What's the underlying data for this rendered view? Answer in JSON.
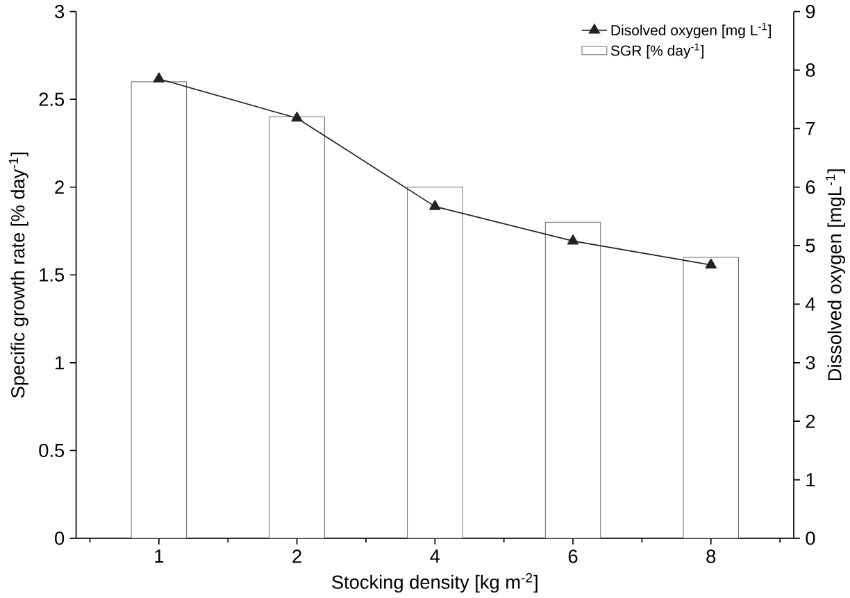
{
  "chart_data": {
    "type": "bar",
    "xlabel": "Stocking density [kg m$^{-2}$]",
    "ylabel": "Specific growth rate [% day$^{-1}$]",
    "y2label": "Dissolved oxygen [mgL$^{-1}$]",
    "categories": [
      "1",
      "2",
      "4",
      "6",
      "8"
    ],
    "series": [
      {
        "name": "SGR [% day$^{-1}$]",
        "color": "#ffffff",
        "values": [
          2.6,
          2.4,
          2.0,
          1.8,
          1.6
        ]
      },
      {
        "name": "Disolved oxygen [mg L$^{-1}$]",
        "type": "line",
        "axis": "y2",
        "color": "#222222",
        "marker": "triangle",
        "line_style": "solid",
        "values": [
          7.85,
          7.18,
          5.67,
          5.08,
          4.67
        ]
      }
    ],
    "ylim": [
      0,
      3
    ],
    "yticks": [
      0,
      0.5,
      1,
      1.5,
      2,
      2.5,
      3
    ],
    "y2lim": [
      0,
      9
    ],
    "y2ticks": [
      0,
      1,
      2,
      3,
      4,
      5,
      6,
      7,
      8,
      9
    ],
    "legend": "top right",
    "grid": false
  }
}
